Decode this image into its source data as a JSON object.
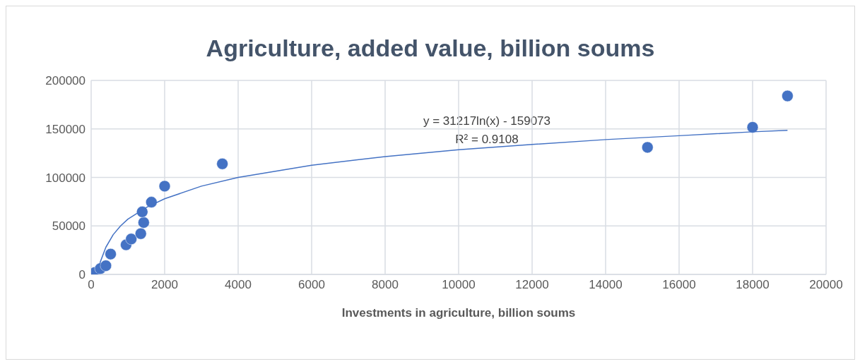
{
  "chart_data": {
    "type": "scatter",
    "title": "Agriculture, added value, billion soums",
    "xlabel": "Investments in agriculture, billion soums",
    "annotations": [
      "y = 31217ln(x) - 159073",
      "R² = 0.9108"
    ],
    "series": [
      {
        "color": "#4472c4",
        "x": [
          100,
          250,
          400,
          530,
          950,
          1090,
          1350,
          1430,
          1390,
          1640,
          2000,
          3570,
          15140,
          18000,
          18950
        ],
        "values": [
          2000,
          6000,
          9000,
          21000,
          30500,
          36500,
          42000,
          53500,
          64500,
          74500,
          91000,
          114000,
          131000,
          151700,
          184000
        ]
      },
      {
        "type": "line",
        "marker": "none",
        "color": "#4472c4",
        "x": [
          170,
          250,
          400,
          600,
          800,
          1000,
          1500,
          2000,
          3000,
          4000,
          6000,
          8000,
          10000,
          12000,
          14000,
          16000,
          18000,
          18950
        ],
        "values": [
          1000,
          13000,
          28000,
          41000,
          50000,
          57000,
          69000,
          78000,
          91000,
          100000,
          112500,
          121500,
          128500,
          134000,
          139000,
          143000,
          147000,
          148500
        ]
      }
    ],
    "xlim": [
      0,
      20000
    ],
    "xticks": [
      0,
      2000,
      4000,
      6000,
      8000,
      10000,
      12000,
      14000,
      16000,
      18000,
      20000
    ],
    "ylim": [
      0,
      200000
    ],
    "yticks": [
      0,
      50000,
      100000,
      150000,
      200000
    ],
    "grid": true,
    "marker": "circle"
  }
}
